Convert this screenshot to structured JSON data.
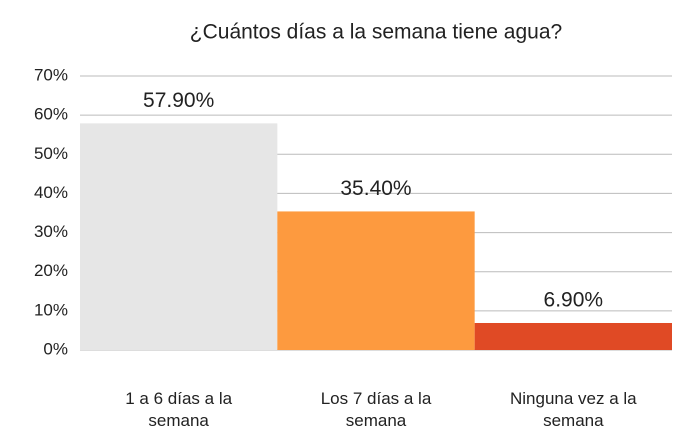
{
  "chart_data": {
    "type": "bar",
    "title": "¿Cuántos días a la semana tiene agua?",
    "categories": [
      "1 a 6 días a la semana",
      "Los 7 días a la semana",
      "Ninguna vez a la semana"
    ],
    "values": [
      57.9,
      35.4,
      6.9
    ],
    "value_labels": [
      "57.90%",
      "35.40%",
      "6.90%"
    ],
    "colors": [
      "#e6e6e6",
      "#fd9a3f",
      "#e04a25"
    ],
    "ylim": [
      0,
      70
    ],
    "yticks": [
      {
        "value": 0,
        "label": "0%"
      },
      {
        "value": 10,
        "label": "10%"
      },
      {
        "value": 20,
        "label": "20%"
      },
      {
        "value": 30,
        "label": "30%"
      },
      {
        "value": 40,
        "label": "40%"
      },
      {
        "value": 50,
        "label": "50%"
      },
      {
        "value": 60,
        "label": "60%"
      },
      {
        "value": 70,
        "label": "70%"
      }
    ],
    "grid": true
  }
}
